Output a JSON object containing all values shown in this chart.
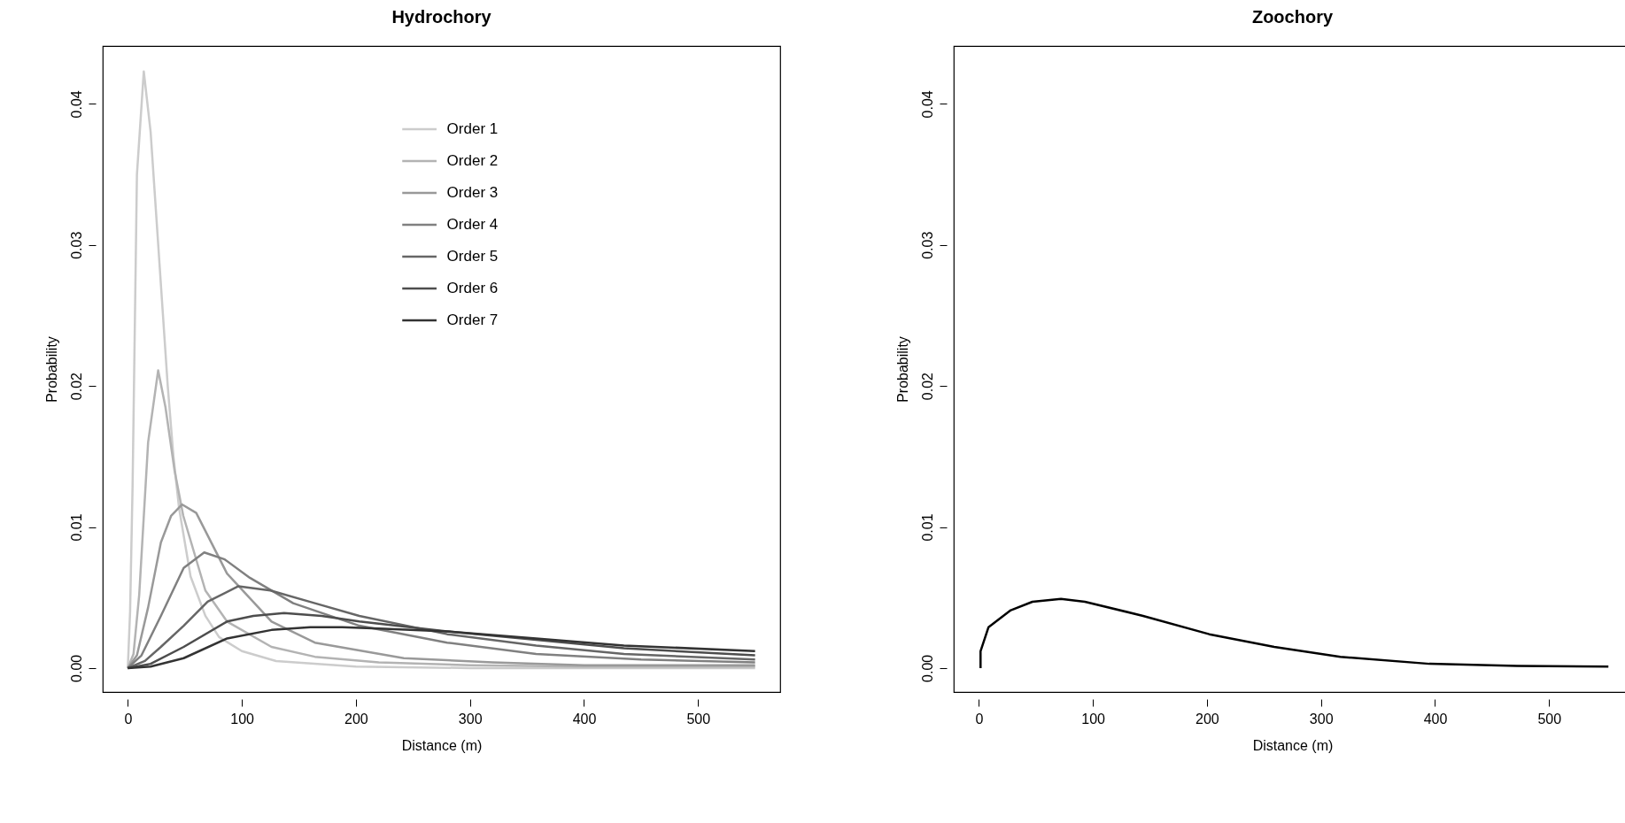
{
  "chart_data": [
    {
      "type": "line",
      "title": "Hydrochory",
      "xlabel": "Distance (m)",
      "ylabel": "Probability",
      "xlim": [
        -22,
        572
      ],
      "ylim": [
        -0.0017,
        0.0441
      ],
      "xticks": [
        0,
        100,
        200,
        300,
        400,
        500
      ],
      "yticks": [
        {
          "value": 0,
          "label": "0.00"
        },
        {
          "value": 0.01,
          "label": "0.01"
        },
        {
          "value": 0.02,
          "label": "0.02"
        },
        {
          "value": 0.03,
          "label": "0.03"
        },
        {
          "value": 0.04,
          "label": "0.04"
        }
      ],
      "grid": false,
      "legend": "top",
      "line_style": "solid",
      "series": [
        {
          "name": "Order 1",
          "color": "#cccccc",
          "x": [
            0,
            2,
            4.2,
            8,
            14,
            20,
            25,
            30,
            35,
            40,
            45,
            55,
            68,
            80,
            100,
            130,
            200,
            300,
            550
          ],
          "values": [
            0,
            0.004,
            0.013,
            0.035,
            0.0423,
            0.038,
            0.032,
            0.026,
            0.02,
            0.015,
            0.0113,
            0.0065,
            0.0037,
            0.0022,
            0.0012,
            0.0005,
            0.0001,
            0,
            0
          ]
        },
        {
          "name": "Order 2",
          "color": "#b3b3b3",
          "x": [
            0,
            5,
            10,
            17.8,
            26.6,
            33,
            41,
            48.6,
            68,
            87,
            126,
            164,
            220,
            300,
            400,
            550
          ],
          "values": [
            0,
            0.001,
            0.0052,
            0.016,
            0.0211,
            0.0185,
            0.014,
            0.0108,
            0.0055,
            0.0033,
            0.0015,
            0.0008,
            0.0004,
            0.0002,
            0.0001,
            0.0001
          ]
        },
        {
          "name": "Order 3",
          "color": "#999999",
          "x": [
            0,
            8,
            17.8,
            29,
            38,
            47.5,
            60,
            87,
            126,
            164,
            242,
            320,
            400,
            550
          ],
          "values": [
            0,
            0.0009,
            0.0043,
            0.0089,
            0.0108,
            0.0116,
            0.011,
            0.0067,
            0.0033,
            0.0018,
            0.0007,
            0.0004,
            0.0002,
            0.0002
          ]
        },
        {
          "name": "Order 4",
          "color": "#808080",
          "x": [
            0,
            12,
            29,
            49,
            67,
            85,
            107,
            145,
            203,
            280,
            358,
            450,
            550
          ],
          "values": [
            0,
            0.0009,
            0.0037,
            0.0071,
            0.0082,
            0.0077,
            0.0064,
            0.0046,
            0.003,
            0.0018,
            0.001,
            0.0006,
            0.0004
          ]
        },
        {
          "name": "Order 5",
          "color": "#666666",
          "x": [
            0,
            15,
            29,
            49,
            70,
            97,
            125,
            164,
            203,
            280,
            358,
            435,
            550
          ],
          "values": [
            0,
            0.0005,
            0.0015,
            0.003,
            0.0047,
            0.0058,
            0.0055,
            0.0046,
            0.0037,
            0.0024,
            0.0016,
            0.001,
            0.0006
          ]
        },
        {
          "name": "Order 6",
          "color": "#4d4d4d",
          "x": [
            0,
            20,
            49,
            87,
            110,
            137,
            170,
            203,
            280,
            358,
            435,
            550
          ],
          "values": [
            0,
            0.0003,
            0.0015,
            0.0033,
            0.0037,
            0.0039,
            0.0037,
            0.0033,
            0.0026,
            0.002,
            0.0014,
            0.0009
          ]
        },
        {
          "name": "Order 7",
          "color": "#333333",
          "x": [
            0,
            20,
            49,
            87,
            126,
            160,
            188,
            220,
            280,
            358,
            435,
            550
          ],
          "values": [
            0,
            0.0001,
            0.0007,
            0.0021,
            0.0027,
            0.0029,
            0.0029,
            0.0028,
            0.0026,
            0.0021,
            0.0016,
            0.0012
          ]
        }
      ]
    },
    {
      "type": "line",
      "title": "Zoochory",
      "xlabel": "Distance (m)",
      "ylabel": "Probability",
      "xlim": [
        -22,
        572
      ],
      "ylim": [
        -0.0017,
        0.0441
      ],
      "xticks": [
        0,
        100,
        200,
        300,
        400,
        500
      ],
      "yticks": [
        {
          "value": 0,
          "label": "0.00"
        },
        {
          "value": 0.01,
          "label": "0.01"
        },
        {
          "value": 0.02,
          "label": "0.02"
        },
        {
          "value": 0.03,
          "label": "0.03"
        },
        {
          "value": 0.04,
          "label": "0.04"
        }
      ],
      "grid": false,
      "line_style": "solid",
      "series": [
        {
          "color": "#000000",
          "x": [
            1.5,
            1.5,
            8.5,
            28,
            47,
            72,
            93,
            144,
            202,
            259,
            317,
            395,
            472,
            552
          ],
          "values": [
            0,
            0.0012,
            0.0029,
            0.0041,
            0.0047,
            0.0049,
            0.0047,
            0.0037,
            0.0024,
            0.0015,
            0.0008,
            0.0003,
            0.00015,
            0.0001
          ]
        }
      ]
    }
  ]
}
